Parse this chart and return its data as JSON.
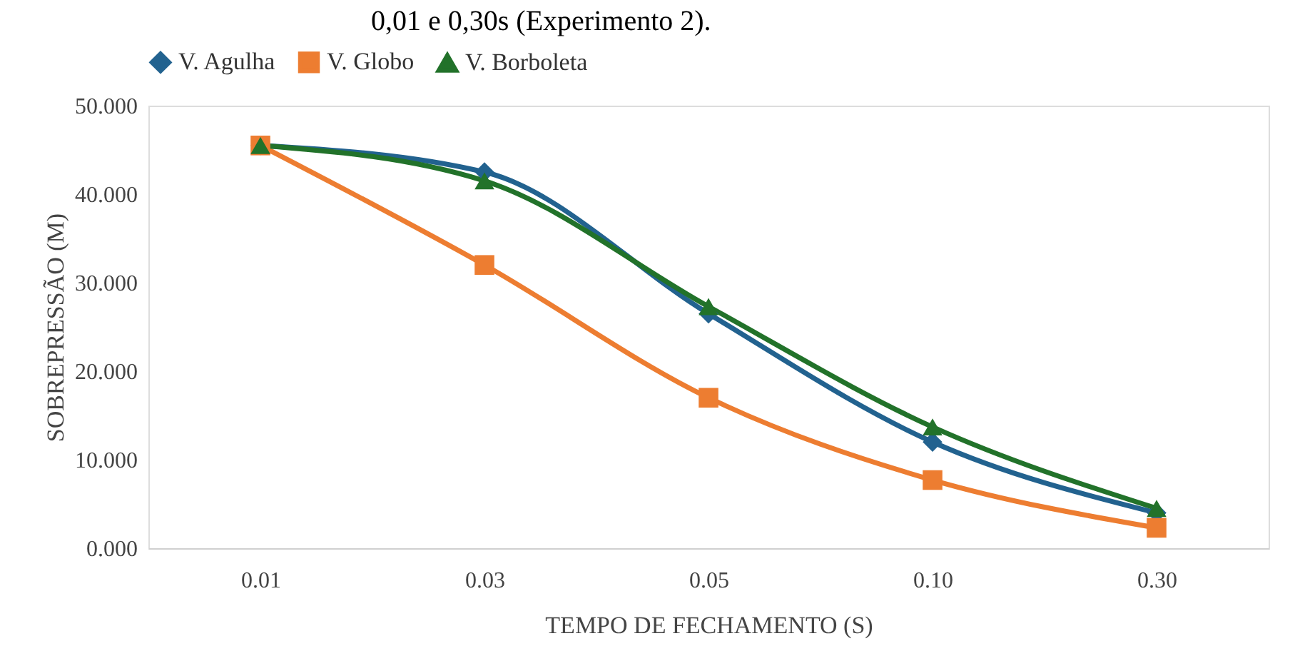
{
  "chart_data": {
    "type": "line",
    "title": "0,01 e 0,30s (Experimento 2).",
    "xlabel": "TEMPO DE FECHAMENTO (S)",
    "ylabel": "SOBREPRESSÃO (M)",
    "categories": [
      "0.01",
      "0.03",
      "0.05",
      "0.10",
      "0.30"
    ],
    "series": [
      {
        "name": "V. Agulha",
        "color": "#22628f",
        "marker": "diamond",
        "values": [
          45.5,
          42.5,
          26.5,
          12.0,
          4.0
        ]
      },
      {
        "name": "V. Globo",
        "color": "#ed7d31",
        "marker": "square",
        "values": [
          45.5,
          32.0,
          17.0,
          7.7,
          2.3
        ]
      },
      {
        "name": "V. Borboleta",
        "color": "#22722a",
        "marker": "triangle",
        "values": [
          45.5,
          41.5,
          27.3,
          13.7,
          4.5
        ]
      }
    ],
    "ylim": [
      0,
      50
    ],
    "yticks": [
      {
        "value": 0,
        "label": "0.000"
      },
      {
        "value": 10,
        "label": "10.000"
      },
      {
        "value": 20,
        "label": "20.000"
      },
      {
        "value": 30,
        "label": "30.000"
      },
      {
        "value": 40,
        "label": "40.000"
      },
      {
        "value": 50,
        "label": "50.000"
      }
    ],
    "grid": false,
    "legend": "top",
    "line_style": "solid"
  }
}
